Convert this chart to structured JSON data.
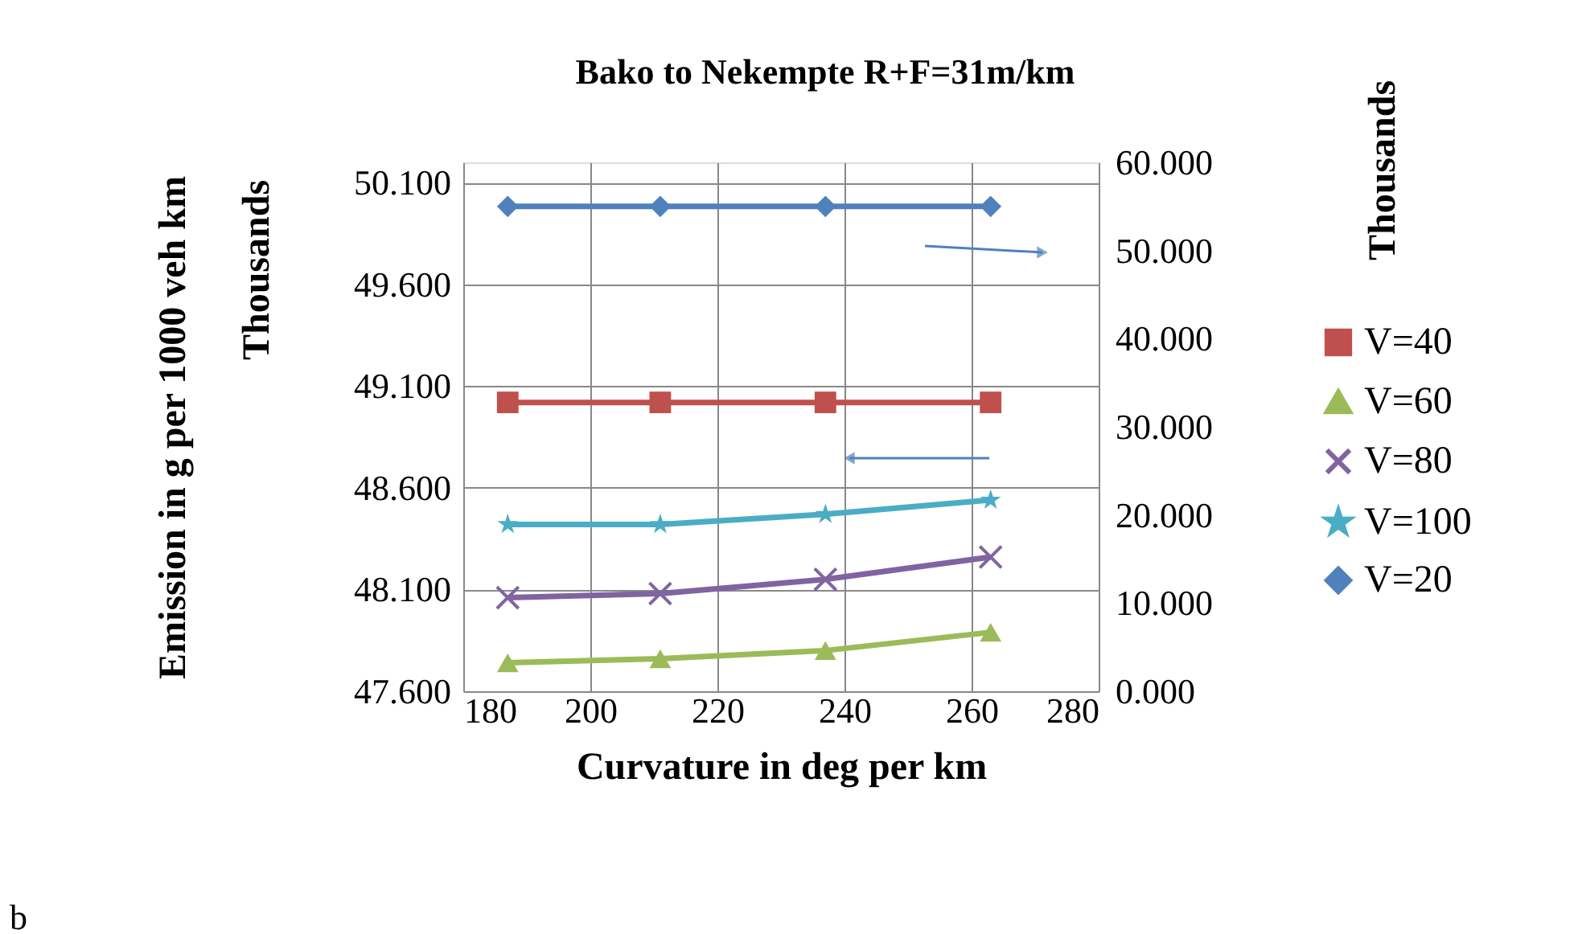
{
  "chart_data": {
    "type": "line",
    "title": "Bako to Nekempte R+F=31m/km",
    "xlabel": "Curvature in deg per km",
    "ylabel": "Emission in g per 1000 veh km",
    "y2label": "Thousands",
    "annotations": [
      "Thousands",
      "b"
    ],
    "x": [
      187,
      211,
      237,
      263
    ],
    "xlim": [
      180,
      280
    ],
    "xticks": [
      180,
      200,
      220,
      240,
      260,
      280
    ],
    "ylim": [
      47.6,
      50.2
    ],
    "yticks": [
      {
        "value": 47.6,
        "label": "47.600"
      },
      {
        "value": 48.1,
        "label": "48.100"
      },
      {
        "value": 48.6,
        "label": "48.600"
      },
      {
        "value": 49.1,
        "label": "49.100"
      },
      {
        "value": 49.6,
        "label": "49.600"
      },
      {
        "value": 50.1,
        "label": "50.100"
      }
    ],
    "y2lim": [
      0,
      60
    ],
    "y2ticks": [
      {
        "value": 0,
        "label": "0.000"
      },
      {
        "value": 10,
        "label": "10.000"
      },
      {
        "value": 20,
        "label": "20.000"
      },
      {
        "value": 30,
        "label": "30.000"
      },
      {
        "value": 40,
        "label": "40.000"
      },
      {
        "value": 50,
        "label": "50.000"
      },
      {
        "value": 60,
        "label": "60.000"
      }
    ],
    "grid": true,
    "legend": "right",
    "line_style": "solid",
    "series": [
      {
        "name": "V=40",
        "color": "#c0504d",
        "marker": "square",
        "values": [
          49.02,
          49.02,
          49.02,
          49.02
        ]
      },
      {
        "name": "V=60",
        "color": "#9bbb59",
        "marker": "triangle",
        "values": [
          47.74,
          47.76,
          47.8,
          47.89
        ]
      },
      {
        "name": "V=80",
        "color": "#8064a2",
        "marker": "cross",
        "values": [
          48.06,
          48.08,
          48.15,
          48.26
        ]
      },
      {
        "name": "V=100",
        "color": "#4bacc6",
        "marker": "star",
        "values": [
          48.42,
          48.42,
          48.47,
          48.54
        ]
      },
      {
        "name": "V=20",
        "color": "#4f81bd",
        "marker": "diamond",
        "axis": "y2",
        "values": [
          55,
          55,
          55,
          55
        ]
      }
    ]
  }
}
